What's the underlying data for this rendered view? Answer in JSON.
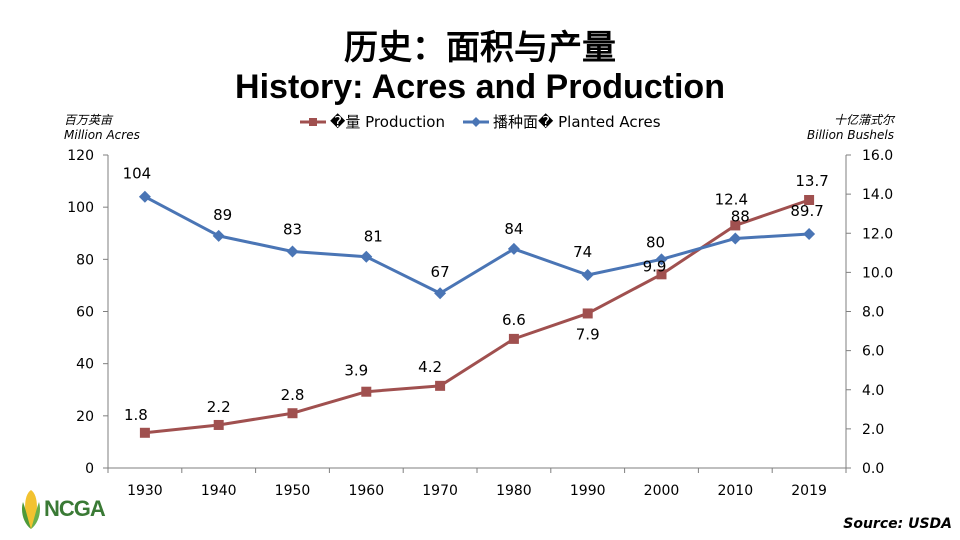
{
  "title_cn": "历史：面积与产量",
  "title_en": "History: Acres and Production",
  "left_axis_caption": [
    "百万英亩",
    "Million Acres"
  ],
  "right_axis_caption": [
    "十亿蒲式尔",
    "Billion Bushels"
  ],
  "logo_text": "NCGA",
  "source": "Source: USDA",
  "chart_data": {
    "type": "line",
    "categories": [
      "1930",
      "1940",
      "1950",
      "1960",
      "1970",
      "1980",
      "1990",
      "2000",
      "2010",
      "2019"
    ],
    "y_left": {
      "ticks": [
        "0",
        "20",
        "40",
        "60",
        "80",
        "100",
        "120"
      ],
      "range": [
        0,
        120
      ]
    },
    "y_right": {
      "ticks": [
        "0.0",
        "2.0",
        "4.0",
        "6.0",
        "8.0",
        "10.0",
        "12.0",
        "14.0",
        "16.0"
      ],
      "range": [
        0,
        16
      ]
    },
    "legend_position": "top",
    "series": [
      {
        "name": "�量 Production",
        "axis": "right",
        "color": "#a0504f",
        "marker": "square",
        "values": [
          1.8,
          2.2,
          2.8,
          3.9,
          4.2,
          6.6,
          7.9,
          9.9,
          12.4,
          13.7
        ],
        "labels": [
          "1.8",
          "2.2",
          "2.8",
          "3.9",
          "4.2",
          "6.6",
          "7.9",
          "9.9",
          "12.4",
          "13.7"
        ]
      },
      {
        "name": "播种面� Planted Acres",
        "axis": "left",
        "color": "#4a75b5",
        "marker": "diamond",
        "values": [
          104,
          89,
          83,
          81,
          67,
          84,
          74,
          80,
          88,
          89.7
        ],
        "labels": [
          "104",
          "89",
          "83",
          "81",
          "67",
          "84",
          "74",
          "80",
          "88",
          "89.7"
        ]
      }
    ]
  }
}
